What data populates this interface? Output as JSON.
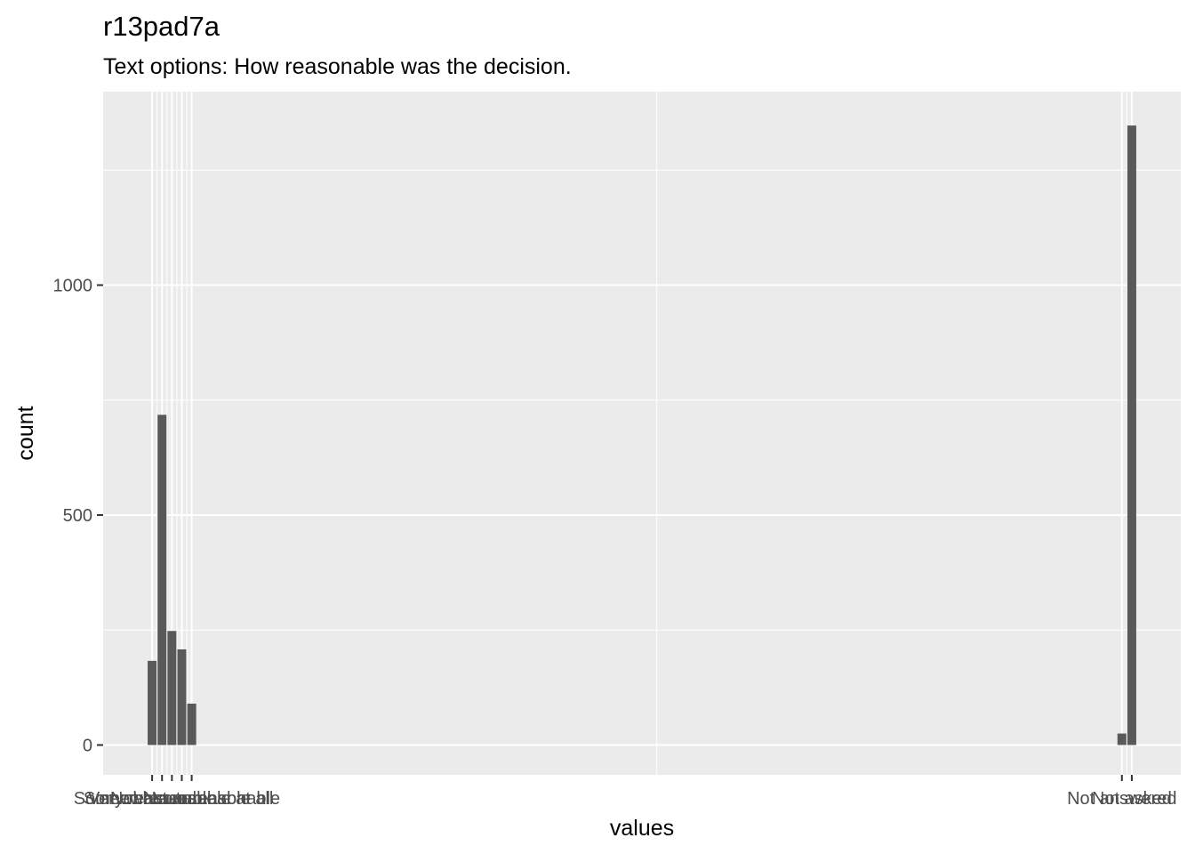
{
  "chart_data": {
    "type": "bar",
    "title": "r13pad7a",
    "subtitle": "Text options: How reasonable was the decision.",
    "xlabel": "values",
    "ylabel": "count",
    "categories": [
      "Very reasonable",
      "Somewhat reasonable",
      "Neutral",
      "Somewhat unreasonable",
      "Not reasonable at all",
      "Not answered",
      "Not asked"
    ],
    "x": [
      1,
      2,
      3,
      4,
      5,
      99,
      100
    ],
    "values": [
      183,
      718,
      248,
      208,
      90,
      25,
      1347
    ],
    "ylim": [
      0,
      1414
    ],
    "xlim": [
      -3.95,
      104.95
    ],
    "y_ticks": [
      0,
      500,
      1000
    ],
    "y_tick_labels": [
      "0",
      "500",
      "1000"
    ],
    "grid": true,
    "colors": {
      "panel": "#ebebeb",
      "grid": "#ffffff",
      "bar": "#595959",
      "tick_text": "#4d4d4d"
    }
  }
}
